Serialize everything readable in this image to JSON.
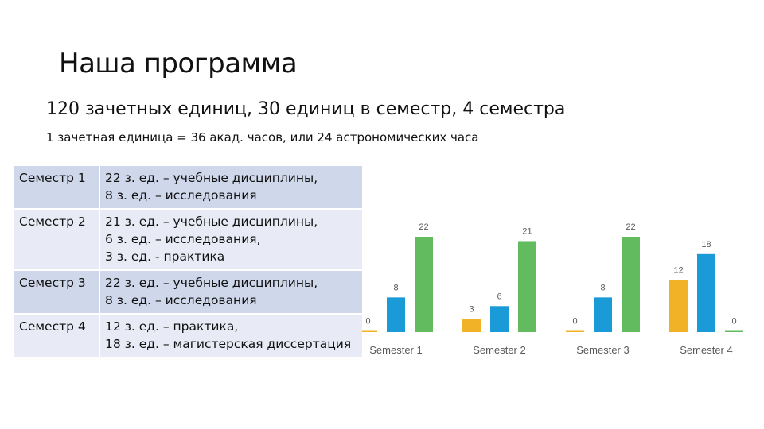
{
  "title": "Наша программа",
  "subtitle": "120 зачетных единиц, 30 единиц в семестр, 4 семестра",
  "note": "1 зачетная единица = 36 акад. часов, или 24 астрономических часа",
  "semesters": [
    {
      "name": "Семестр 1",
      "lines": [
        "22 з. ед. – учебные дисциплины,",
        "8 з. ед. – исследования"
      ]
    },
    {
      "name": "Семестр 2",
      "lines": [
        "21 з. ед. – учебные дисциплины,",
        "6 з. ед. – исследования,",
        "3 з. ед. - практика"
      ]
    },
    {
      "name": "Семестр 3",
      "lines": [
        "22 з. ед. – учебные дисциплины,",
        "8 з. ед. – исследования"
      ]
    },
    {
      "name": "Семестр 4",
      "lines": [
        "12 з. ед. – практика,",
        "18 з. ед. – магистерская диссертация"
      ]
    }
  ],
  "chart_data": {
    "type": "bar",
    "categories": [
      "Semester 1",
      "Semester 2",
      "Semester 3",
      "Semester 4"
    ],
    "series": [
      {
        "values": [
          0,
          3,
          0,
          12
        ],
        "color": "#f2b227"
      },
      {
        "values": [
          8,
          6,
          8,
          18
        ],
        "color": "#1a9ad6"
      },
      {
        "values": [
          22,
          21,
          22,
          0
        ],
        "color": "#62bb5e"
      }
    ],
    "ylim": [
      0,
      22
    ],
    "grid": false,
    "legend": "none",
    "data_labels": true
  }
}
